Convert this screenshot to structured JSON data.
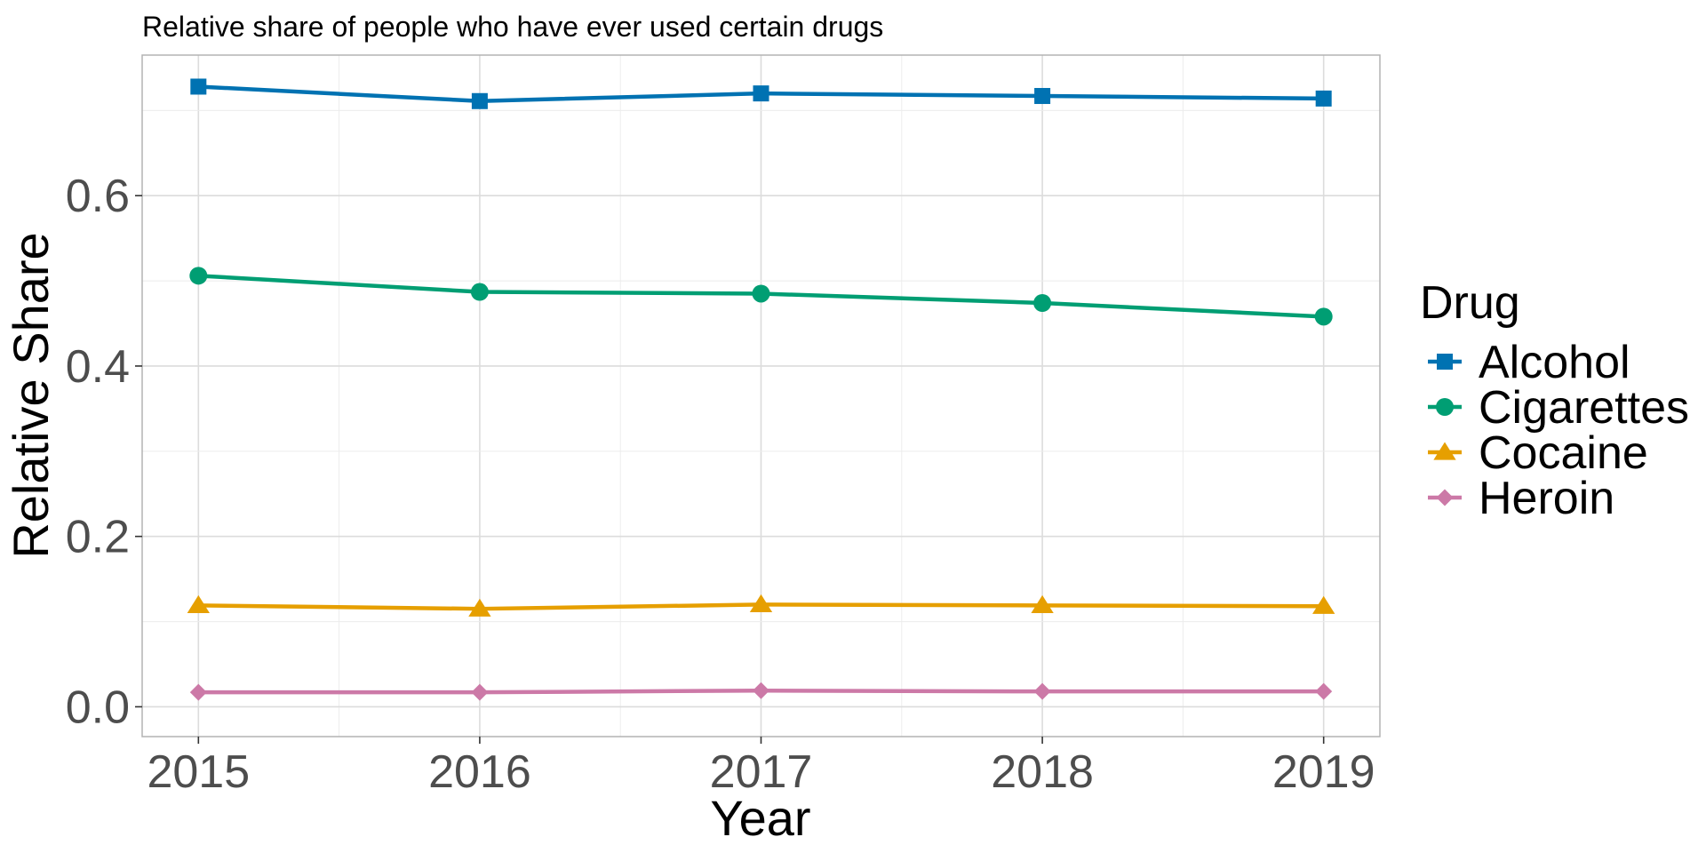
{
  "chart_data": {
    "type": "line",
    "title": "Relative share of people who have ever used certain drugs",
    "xlabel": "Year",
    "ylabel": "Relative Share",
    "x": [
      2015,
      2016,
      2017,
      2018,
      2019
    ],
    "x_tick_labels": [
      "2015",
      "2016",
      "2017",
      "2018",
      "2019"
    ],
    "y_ticks": [
      0.0,
      0.2,
      0.4,
      0.6
    ],
    "y_tick_labels": [
      "0.0",
      "0.2",
      "0.4",
      "0.6"
    ],
    "xlim": [
      2014.8,
      2019.2
    ],
    "ylim": [
      -0.035,
      0.765
    ],
    "grid": true,
    "legend_title": "Drug",
    "legend_position": "right",
    "series": [
      {
        "name": "Alcohol",
        "color": "#0072B2",
        "marker": "square",
        "values": [
          0.728,
          0.711,
          0.72,
          0.717,
          0.714
        ]
      },
      {
        "name": "Cigarettes",
        "color": "#009E73",
        "marker": "circle",
        "values": [
          0.506,
          0.487,
          0.485,
          0.474,
          0.458
        ]
      },
      {
        "name": "Cocaine",
        "color": "#E69F00",
        "marker": "triangle",
        "values": [
          0.119,
          0.115,
          0.12,
          0.119,
          0.118
        ]
      },
      {
        "name": "Heroin",
        "color": "#CC79A7",
        "marker": "diamond",
        "values": [
          0.017,
          0.017,
          0.019,
          0.018,
          0.018
        ]
      }
    ]
  }
}
